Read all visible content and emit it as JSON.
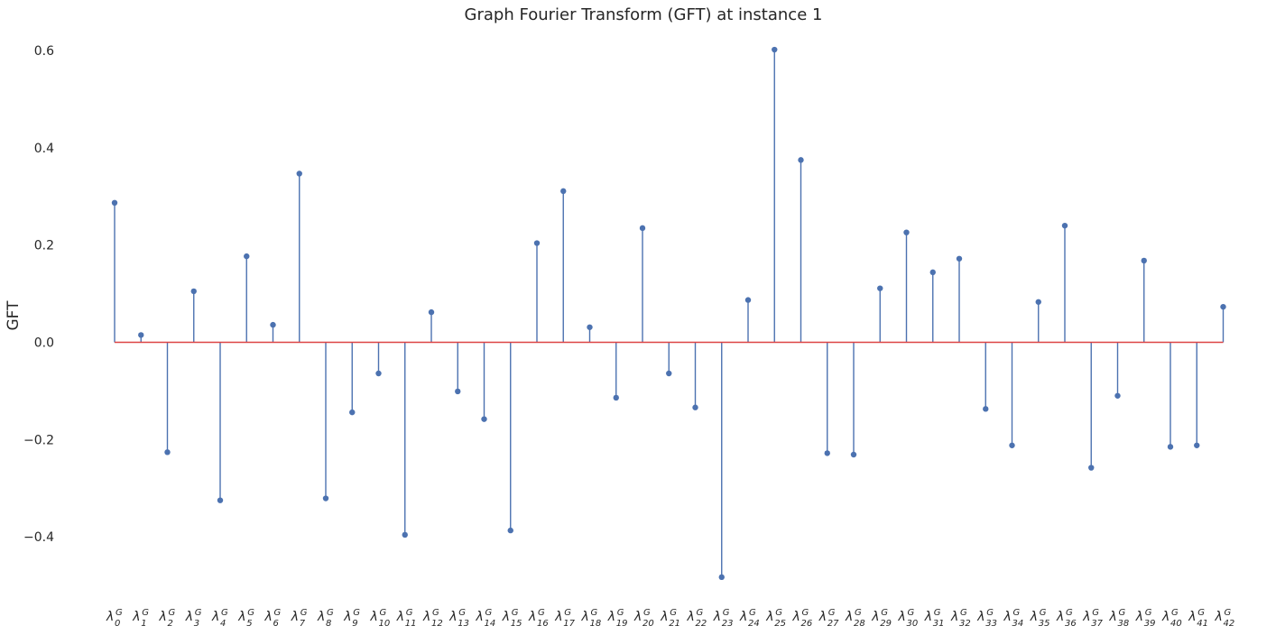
{
  "chart_data": {
    "type": "stem",
    "title": "Graph Fourier Transform (GFT) at instance 1",
    "xlabel": "",
    "ylabel": "GFT",
    "ylim": [
      -0.52,
      0.62
    ],
    "yticks": [
      -0.4,
      -0.2,
      0.0,
      0.2,
      0.4,
      0.6
    ],
    "ytick_labels": [
      "−0.4",
      "−0.2",
      "0.0",
      "0.2",
      "0.4",
      "0.6"
    ],
    "grid": false,
    "x_tick_base": "λ",
    "x_tick_superscript": "G",
    "x_tick_subscripts": [
      "0",
      "1",
      "2",
      "3",
      "4",
      "5",
      "6",
      "7",
      "8",
      "9",
      "10",
      "11",
      "12",
      "13",
      "14",
      "15",
      "16",
      "17",
      "18",
      "19",
      "20",
      "21",
      "22",
      "23",
      "24",
      "25",
      "26",
      "27",
      "28",
      "29",
      "30",
      "31",
      "32",
      "33",
      "34",
      "35",
      "36",
      "37",
      "38",
      "39",
      "40",
      "41",
      "42"
    ],
    "values": [
      0.287,
      0.015,
      -0.226,
      0.105,
      -0.325,
      0.177,
      0.036,
      0.347,
      -0.321,
      -0.144,
      -0.064,
      -0.396,
      0.062,
      -0.101,
      -0.158,
      -0.387,
      0.204,
      0.311,
      0.031,
      -0.114,
      0.235,
      -0.064,
      -0.134,
      -0.483,
      0.087,
      0.602,
      0.375,
      -0.228,
      -0.231,
      0.111,
      0.226,
      0.144,
      0.172,
      -0.137,
      -0.212,
      0.083,
      0.24,
      -0.258,
      -0.11,
      0.168,
      -0.215,
      -0.212,
      0.073
    ],
    "colors": {
      "stem": "#4c72b0",
      "baseline": "#dd4444",
      "text": "#262626"
    }
  }
}
